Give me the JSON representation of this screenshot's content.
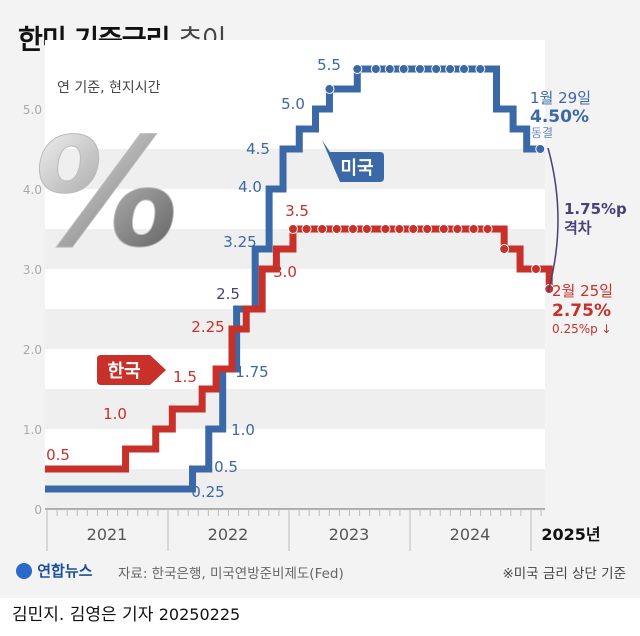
{
  "title": {
    "bold": "한미 기준금리",
    "light": "추이"
  },
  "colors": {
    "us": "#3b68a6",
    "kr": "#c8302a",
    "gap": "#4b3f7a"
  },
  "chart_data": {
    "type": "line",
    "step": true,
    "subtitle": "연 기준, 현지시간",
    "ylim": [
      0,
      5.5
    ],
    "yticks": [
      "0",
      "1.0",
      "2.0",
      "3.0",
      "4.0",
      "5.0"
    ],
    "xticks": [
      "2021",
      "2022",
      "2023",
      "2024",
      "2025년"
    ],
    "series": [
      {
        "name": "미국",
        "steps": [
          [
            "2021-01-01",
            0.25
          ],
          [
            "2022-03-16",
            0.5
          ],
          [
            "2022-05-04",
            1.0
          ],
          [
            "2022-06-15",
            1.75
          ],
          [
            "2022-07-27",
            2.5
          ],
          [
            "2022-09-21",
            3.25
          ],
          [
            "2022-11-02",
            4.0
          ],
          [
            "2022-12-14",
            4.5
          ],
          [
            "2023-02-01",
            4.75
          ],
          [
            "2023-03-22",
            5.0
          ],
          [
            "2023-05-03",
            5.25
          ],
          [
            "2023-07-26",
            5.5
          ],
          [
            "2024-09-18",
            5.0
          ],
          [
            "2024-11-07",
            4.75
          ],
          [
            "2024-12-18",
            4.5
          ],
          [
            "2025-01-29",
            4.5
          ]
        ],
        "holds": [
          "2023-05-03",
          "2023-07-26",
          "2023-09-20",
          "2023-11-01",
          "2023-12-13",
          "2024-01-31",
          "2024-03-20",
          "2024-05-01",
          "2024-06-12",
          "2024-07-31",
          "2025-01-29"
        ],
        "labels": [
          "0.25",
          "0.5",
          "1.0",
          "1.75",
          "2.5",
          "3.25",
          "4.0",
          "4.5",
          "5.0",
          "5.5"
        ]
      },
      {
        "name": "한국",
        "steps": [
          [
            "2021-01-01",
            0.5
          ],
          [
            "2021-08-26",
            0.75
          ],
          [
            "2021-11-25",
            1.0
          ],
          [
            "2022-01-14",
            1.25
          ],
          [
            "2022-04-14",
            1.5
          ],
          [
            "2022-05-26",
            1.75
          ],
          [
            "2022-07-13",
            2.25
          ],
          [
            "2022-08-25",
            2.5
          ],
          [
            "2022-10-12",
            3.0
          ],
          [
            "2022-11-24",
            3.25
          ],
          [
            "2023-01-13",
            3.5
          ],
          [
            "2024-10-11",
            3.25
          ],
          [
            "2024-11-28",
            3.0
          ],
          [
            "2025-02-25",
            2.75
          ]
        ],
        "holds": [
          "2023-01-13",
          "2023-02-23",
          "2023-04-11",
          "2023-05-25",
          "2023-07-13",
          "2023-08-24",
          "2023-10-19",
          "2023-11-30",
          "2024-01-11",
          "2024-02-22",
          "2024-04-12",
          "2024-05-23",
          "2024-07-11",
          "2024-08-22",
          "2024-10-11",
          "2025-01-16",
          "2025-02-25"
        ],
        "labels": [
          "0.5",
          "1.0",
          "1.5",
          "2.25",
          "3.0",
          "3.5"
        ]
      }
    ],
    "annotations": {
      "us": {
        "date": "1월 29일",
        "rate": "4.50%",
        "status": "동결"
      },
      "kr": {
        "date": "2월 25일",
        "rate": "2.75%",
        "change": "0.25%p ↓"
      },
      "gap": {
        "value": "1.75%p",
        "label": "격차"
      }
    }
  },
  "footer": {
    "logo": "연합뉴스",
    "source": "자료: 한국은행, 미국연방준비제도(Fed)",
    "note": "※미국 금리 상단 기준",
    "credit": "김민지. 김영은 기자",
    "date": "20250225"
  }
}
